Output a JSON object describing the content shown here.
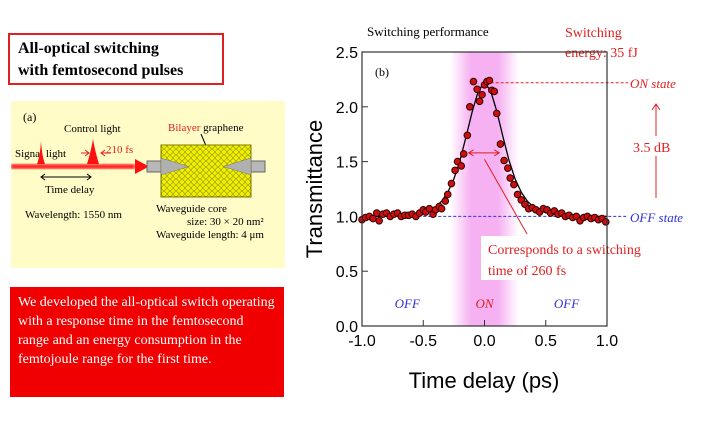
{
  "title_box": {
    "line1": "All-optical switching",
    "line2": "with femtosecond pulses"
  },
  "panel_a": {
    "label": "(a)",
    "control_light": "Control light",
    "signal_light": "Signal light",
    "pulse_width": "210 fs",
    "time_delay": "Time delay",
    "wavelength": "Wavelength: 1550 nm",
    "bilayer": "Bilayer",
    "graphene": " graphene",
    "core_line1": "Waveguide core",
    "core_line2": "size: 30 × 20 nm²",
    "length": "Waveguide length: 4 μm"
  },
  "summary": "We developed the all-optical switch operating with a response time in the femtosecond range and an energy consumption in the femtojoule range for the first time.",
  "colors": {
    "accent_red": "#e02020",
    "off_blue": "#3030e0",
    "panel_yellow": "#fffcc8",
    "marker": "#cc1010",
    "on_band": "#f5a8f0"
  },
  "chart_data": {
    "type": "scatter",
    "title": "Switching performance",
    "panel_label": "(b)",
    "xlabel": "Time delay (ps)",
    "ylabel": "Transmittance",
    "xlim": [
      -1.0,
      1.0
    ],
    "ylim": [
      0.0,
      2.5
    ],
    "xticks": [
      "-1.0",
      "-0.5",
      "0.0",
      "0.5",
      "1.0"
    ],
    "yticks": [
      "0.0",
      "0.5",
      "1.0",
      "1.5",
      "2.0",
      "2.5"
    ],
    "grid": false,
    "points": {
      "x": [
        -1.0,
        -0.97,
        -0.94,
        -0.91,
        -0.88,
        -0.86,
        -0.83,
        -0.8,
        -0.77,
        -0.74,
        -0.71,
        -0.68,
        -0.65,
        -0.62,
        -0.59,
        -0.56,
        -0.53,
        -0.5,
        -0.48,
        -0.45,
        -0.42,
        -0.4,
        -0.37,
        -0.35,
        -0.32,
        -0.3,
        -0.27,
        -0.24,
        -0.22,
        -0.19,
        -0.17,
        -0.14,
        -0.12,
        -0.09,
        -0.06,
        -0.04,
        -0.02,
        0.0,
        0.02,
        0.04,
        0.06,
        0.08,
        0.1,
        0.13,
        0.16,
        0.19,
        0.21,
        0.24,
        0.27,
        0.3,
        0.33,
        0.36,
        0.39,
        0.42,
        0.45,
        0.48,
        0.51,
        0.54,
        0.57,
        0.6,
        0.63,
        0.66,
        0.69,
        0.72,
        0.75,
        0.78,
        0.81,
        0.84,
        0.87,
        0.9,
        0.93,
        0.96,
        0.99
      ],
      "y": [
        0.97,
        0.99,
        1.0,
        0.98,
        1.03,
        0.96,
        1.02,
        1.03,
        1.0,
        1.02,
        1.03,
        1.0,
        1.01,
        1.01,
        1.02,
        1.0,
        1.03,
        1.06,
        1.04,
        1.07,
        1.02,
        1.06,
        1.09,
        1.07,
        1.14,
        1.2,
        1.3,
        1.42,
        1.5,
        1.46,
        1.57,
        1.74,
        2.0,
        2.23,
        2.16,
        2.05,
        2.11,
        2.2,
        2.23,
        2.24,
        2.15,
        2.14,
        1.94,
        1.66,
        1.51,
        1.44,
        1.35,
        1.29,
        1.2,
        1.15,
        1.11,
        1.07,
        1.08,
        1.06,
        1.04,
        1.07,
        1.06,
        1.03,
        1.05,
        1.02,
        1.03,
        1.0,
        1.01,
        0.99,
        1.0,
        0.96,
        0.99,
        1.0,
        0.98,
        0.99,
        0.97,
        0.98,
        0.95
      ]
    },
    "fit": {
      "x": [
        -1.0,
        -0.8,
        -0.7,
        -0.6,
        -0.5,
        -0.4,
        -0.35,
        -0.3,
        -0.25,
        -0.2,
        -0.15,
        -0.1,
        -0.05,
        0.0,
        0.05,
        0.1,
        0.15,
        0.2,
        0.25,
        0.3,
        0.35,
        0.4,
        0.5,
        0.6,
        0.7,
        0.8,
        1.0
      ],
      "y": [
        1.0,
        1.001,
        1.004,
        1.012,
        1.032,
        1.086,
        1.139,
        1.22,
        1.342,
        1.512,
        1.728,
        1.959,
        2.147,
        2.22,
        2.147,
        1.959,
        1.728,
        1.512,
        1.342,
        1.22,
        1.139,
        1.086,
        1.032,
        1.012,
        1.004,
        1.001,
        1.0
      ]
    },
    "on_band": [
      -0.28,
      0.28
    ],
    "annotations": {
      "energy_line1": "Switching",
      "energy_line2": "energy: 35 fJ",
      "on_state": "ON state",
      "off_state": "OFF state",
      "contrast": "3.5 dB",
      "switch_time_line1": "Corresponds to a switching",
      "switch_time_line2": "time of 260 fs",
      "region_off_left": "OFF",
      "region_on": "ON",
      "region_off_right": "OFF"
    }
  }
}
